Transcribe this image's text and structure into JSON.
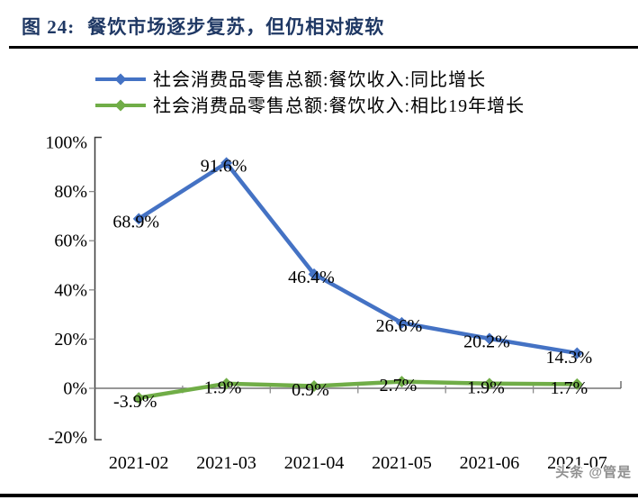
{
  "header": {
    "prefix": "图 24:",
    "title": "餐饮市场逐步复苏，但仍相对疲软"
  },
  "watermark": "头条 @管是",
  "colors": {
    "accent_blue": "#4472C4",
    "accent_green": "#70AD47",
    "title_navy": "#1F3864",
    "rule_black": "#000000",
    "axis_gray": "#595959"
  },
  "chart_data": {
    "type": "line",
    "title": "餐饮市场逐步复苏，但仍相对疲软",
    "categories": [
      "2021-02",
      "2021-03",
      "2021-04",
      "2021-05",
      "2021-06",
      "2021-07"
    ],
    "series": [
      {
        "name": "社会消费品零售总额:餐饮收入:同比增长",
        "color": "#4472C4",
        "marker": "diamond",
        "values": [
          68.9,
          91.6,
          46.4,
          26.6,
          20.2,
          14.3
        ],
        "labels": [
          "68.9%",
          "91.6%",
          "46.4%",
          "26.6%",
          "20.2%",
          "14.3%"
        ]
      },
      {
        "name": "社会消费品零售总额:餐饮收入:相比19年增长",
        "color": "#70AD47",
        "marker": "diamond",
        "values": [
          -3.9,
          1.9,
          0.9,
          2.7,
          1.9,
          1.7
        ],
        "labels": [
          "-3.9%",
          "1.9%",
          "0.9%",
          "2.7%",
          "1.9%",
          "1.7%"
        ]
      }
    ],
    "ytick_labels": [
      "100%",
      "80%",
      "60%",
      "40%",
      "20%",
      "0%",
      "-20%"
    ],
    "ylim": [
      -20,
      100
    ],
    "xlabel": "",
    "ylabel": "",
    "grid": false,
    "legend_position": "top",
    "data_labels_visible": true
  }
}
